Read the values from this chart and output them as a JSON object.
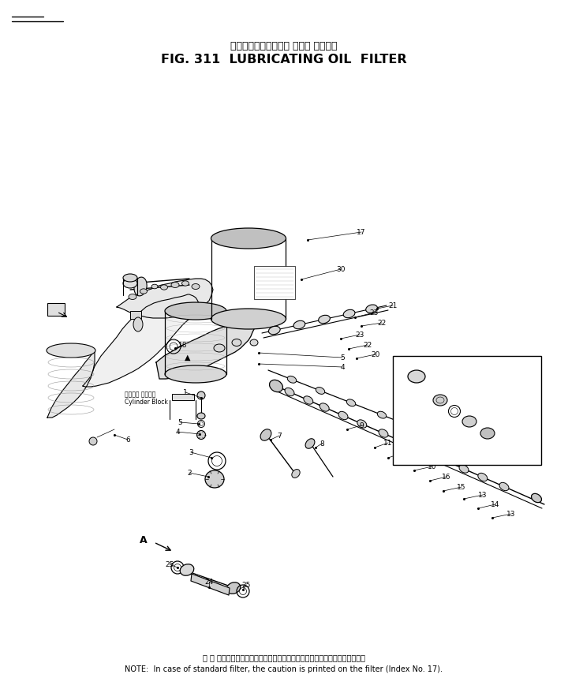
{
  "title_japanese": "ルーブリケーティング オイル フィルタ",
  "title_english": "FIG. 311  LUBRICATING OIL  FILTER",
  "note_japanese": "注 ： 標準フィルタの場合，その注意書きはフィルタ上に印刺されています．",
  "note_english": "NOTE:  In case of standard filter, the caution is printed on the filter (Index No. 17).",
  "bg_color": "#ffffff",
  "page_width": 7.2,
  "page_height": 8.79,
  "dpi": 100
}
